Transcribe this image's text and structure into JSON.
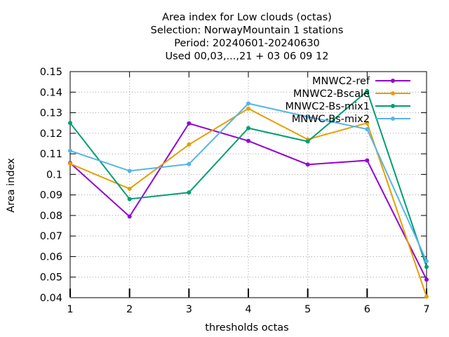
{
  "chart_data": {
    "type": "line",
    "title_lines": [
      "Area index  for Low clouds (octas)",
      "Selection: NorwayMountain      1 stations",
      "Period: 20240601-20240630",
      "Used 00,03,...,21 + 03 06 09 12"
    ],
    "xlabel": "thresholds octas",
    "ylabel": "Area index",
    "x": [
      1,
      2,
      3,
      4,
      5,
      6,
      7
    ],
    "xlim": [
      1,
      7
    ],
    "ylim": [
      0.04,
      0.15
    ],
    "x_ticks": [
      "1",
      "2",
      "3",
      "4",
      "5",
      "6",
      "7"
    ],
    "y_ticks": [
      "0.04",
      "0.05",
      "0.06",
      "0.07",
      "0.08",
      "0.09",
      "0.1",
      "0.11",
      "0.12",
      "0.13",
      "0.14",
      "0.15"
    ],
    "grid": true,
    "legend_position": "top-right",
    "series": [
      {
        "name": "MNWC2-ref",
        "color": "#9400d3",
        "values": [
          0.1055,
          0.0795,
          0.1248,
          0.1163,
          0.1048,
          0.1068,
          0.0488
        ]
      },
      {
        "name": "MNWC2-Bscale",
        "color": "#e69f00",
        "values": [
          0.1052,
          0.093,
          0.1145,
          0.132,
          0.117,
          0.125,
          0.0405
        ]
      },
      {
        "name": "MNWC2-Bs-mix1",
        "color": "#009e73",
        "values": [
          0.125,
          0.088,
          0.0912,
          0.1225,
          0.116,
          0.1405,
          0.055
        ]
      },
      {
        "name": "MNWC-Bs-mix2",
        "color": "#56b4e9",
        "values": [
          0.1115,
          0.1017,
          0.105,
          0.1345,
          0.128,
          0.122,
          0.0578
        ]
      }
    ]
  }
}
